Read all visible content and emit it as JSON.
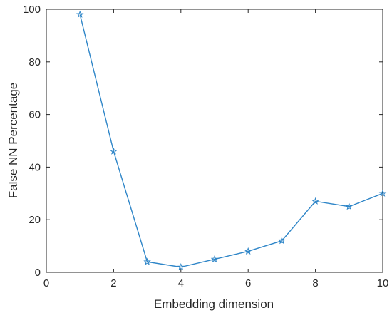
{
  "chart_data": {
    "type": "line",
    "title": "",
    "xlabel": "Embedding dimension",
    "ylabel": "False NN Percentage",
    "xlim": [
      0,
      10
    ],
    "ylim": [
      0,
      100
    ],
    "xticks": [
      0,
      2,
      4,
      6,
      8,
      10
    ],
    "yticks": [
      0,
      20,
      40,
      60,
      80,
      100
    ],
    "grid": false,
    "legend": "none",
    "marker": "star",
    "series": [
      {
        "color": "#2f86c8",
        "x": [
          1,
          2,
          3,
          4,
          5,
          6,
          7,
          8,
          9,
          10
        ],
        "y": [
          98,
          46,
          4,
          2,
          5,
          8,
          12,
          27,
          25,
          30
        ]
      }
    ]
  }
}
